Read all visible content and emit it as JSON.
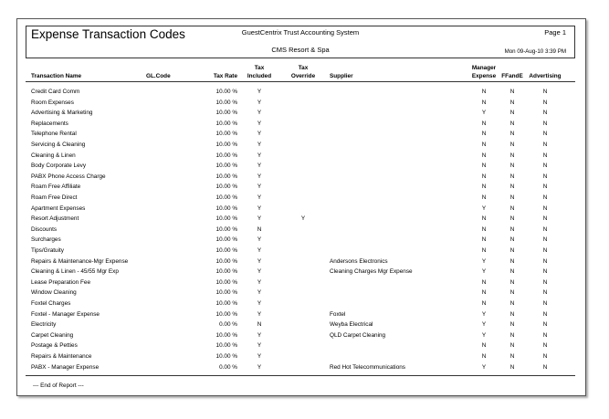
{
  "header": {
    "title": "Expense Transaction Codes",
    "system": "GuestCentrix Trust Accounting System",
    "page": "Page 1",
    "property": "CMS Resort & Spa",
    "printed": "Mon 09-Aug-10 3:39 PM"
  },
  "table": {
    "columns": {
      "name": [
        "Transaction Name"
      ],
      "gl_code": [
        "GL.Code"
      ],
      "tax_rate": [
        "Tax Rate"
      ],
      "tax_included": [
        "Tax",
        "Included"
      ],
      "tax_override": [
        "Tax",
        "Override"
      ],
      "supplier": [
        "Supplier"
      ],
      "manager_expense": [
        "Manager",
        "Expense"
      ],
      "ffande": [
        "FFandE"
      ],
      "advertising": [
        "Advertising"
      ]
    },
    "rows": [
      {
        "name": "Credit Card Comm",
        "tax_rate": "10.00 %",
        "tax_included": "Y",
        "manager_expense": "N",
        "ffande": "N",
        "advertising": "N"
      },
      {
        "name": "Room Expenses",
        "tax_rate": "10.00 %",
        "tax_included": "Y",
        "manager_expense": "N",
        "ffande": "N",
        "advertising": "N"
      },
      {
        "name": "Advertising & Marketing",
        "tax_rate": "10.00 %",
        "tax_included": "Y",
        "manager_expense": "Y",
        "ffande": "N",
        "advertising": "N"
      },
      {
        "name": "Replacements",
        "tax_rate": "10.00 %",
        "tax_included": "Y",
        "manager_expense": "N",
        "ffande": "N",
        "advertising": "N"
      },
      {
        "name": "Telephone Rental",
        "tax_rate": "10.00 %",
        "tax_included": "Y",
        "manager_expense": "N",
        "ffande": "N",
        "advertising": "N"
      },
      {
        "name": "Servicing & Cleaning",
        "tax_rate": "10.00 %",
        "tax_included": "Y",
        "manager_expense": "N",
        "ffande": "N",
        "advertising": "N"
      },
      {
        "name": "Cleaning & Linen",
        "tax_rate": "10.00 %",
        "tax_included": "Y",
        "manager_expense": "N",
        "ffande": "N",
        "advertising": "N"
      },
      {
        "name": "Body Corporate Levy",
        "tax_rate": "10.00 %",
        "tax_included": "Y",
        "manager_expense": "N",
        "ffande": "N",
        "advertising": "N"
      },
      {
        "name": "PABX Phone Access Charge",
        "tax_rate": "10.00 %",
        "tax_included": "Y",
        "manager_expense": "N",
        "ffande": "N",
        "advertising": "N"
      },
      {
        "name": "Roam Free Affiliate",
        "tax_rate": "10.00 %",
        "tax_included": "Y",
        "manager_expense": "N",
        "ffande": "N",
        "advertising": "N"
      },
      {
        "name": "Roam Free Direct",
        "tax_rate": "10.00 %",
        "tax_included": "Y",
        "manager_expense": "N",
        "ffande": "N",
        "advertising": "N"
      },
      {
        "name": "Apartment Expenses",
        "tax_rate": "10.00 %",
        "tax_included": "Y",
        "manager_expense": "Y",
        "ffande": "N",
        "advertising": "N"
      },
      {
        "name": "Resort Adjustment",
        "tax_rate": "10.00 %",
        "tax_included": "Y",
        "tax_override": "Y",
        "manager_expense": "N",
        "ffande": "N",
        "advertising": "N"
      },
      {
        "name": "Discounts",
        "tax_rate": "10.00 %",
        "tax_included": "N",
        "manager_expense": "N",
        "ffande": "N",
        "advertising": "N"
      },
      {
        "name": "Surcharges",
        "tax_rate": "10.00 %",
        "tax_included": "Y",
        "manager_expense": "N",
        "ffande": "N",
        "advertising": "N"
      },
      {
        "name": "Tips/Gratuity",
        "tax_rate": "10.00 %",
        "tax_included": "Y",
        "manager_expense": "N",
        "ffande": "N",
        "advertising": "N"
      },
      {
        "name": "Repairs & Maintenance-Mgr Expense",
        "tax_rate": "10.00 %",
        "tax_included": "Y",
        "supplier": "Andersons Electronics",
        "manager_expense": "Y",
        "ffande": "N",
        "advertising": "N"
      },
      {
        "name": "Cleaning & Linen - 45/55 Mgr Exp",
        "tax_rate": "10.00 %",
        "tax_included": "Y",
        "supplier": "Cleaning Charges Mgr Expense",
        "manager_expense": "Y",
        "ffande": "N",
        "advertising": "N"
      },
      {
        "name": "Lease Preparation Fee",
        "tax_rate": "10.00 %",
        "tax_included": "Y",
        "manager_expense": "N",
        "ffande": "N",
        "advertising": "N"
      },
      {
        "name": "Window Cleaning",
        "tax_rate": "10.00 %",
        "tax_included": "Y",
        "manager_expense": "N",
        "ffande": "N",
        "advertising": "N"
      },
      {
        "name": "Foxtel Charges",
        "tax_rate": "10.00 %",
        "tax_included": "Y",
        "manager_expense": "N",
        "ffande": "N",
        "advertising": "N"
      },
      {
        "name": "Foxtel - Manager Expense",
        "tax_rate": "10.00 %",
        "tax_included": "Y",
        "supplier": "Foxtel",
        "manager_expense": "Y",
        "ffande": "N",
        "advertising": "N"
      },
      {
        "name": "Electricity",
        "tax_rate": "0.00 %",
        "tax_included": "N",
        "supplier": "Weyba Electrical",
        "manager_expense": "Y",
        "ffande": "N",
        "advertising": "N"
      },
      {
        "name": "Carpet Cleaning",
        "tax_rate": "10.00 %",
        "tax_included": "Y",
        "supplier": "QLD Carpet Cleaning",
        "manager_expense": "Y",
        "ffande": "N",
        "advertising": "N"
      },
      {
        "name": "Postage & Petties",
        "tax_rate": "10.00 %",
        "tax_included": "Y",
        "manager_expense": "N",
        "ffande": "N",
        "advertising": "N"
      },
      {
        "name": "Repairs & Maintenance",
        "tax_rate": "10.00 %",
        "tax_included": "Y",
        "manager_expense": "N",
        "ffande": "N",
        "advertising": "N"
      },
      {
        "name": "PABX - Manager Expense",
        "tax_rate": "0.00 %",
        "tax_included": "Y",
        "supplier": "Red Hot Telecommunications",
        "manager_expense": "Y",
        "ffande": "N",
        "advertising": "N"
      }
    ]
  },
  "footer": "--- End of Report ---"
}
